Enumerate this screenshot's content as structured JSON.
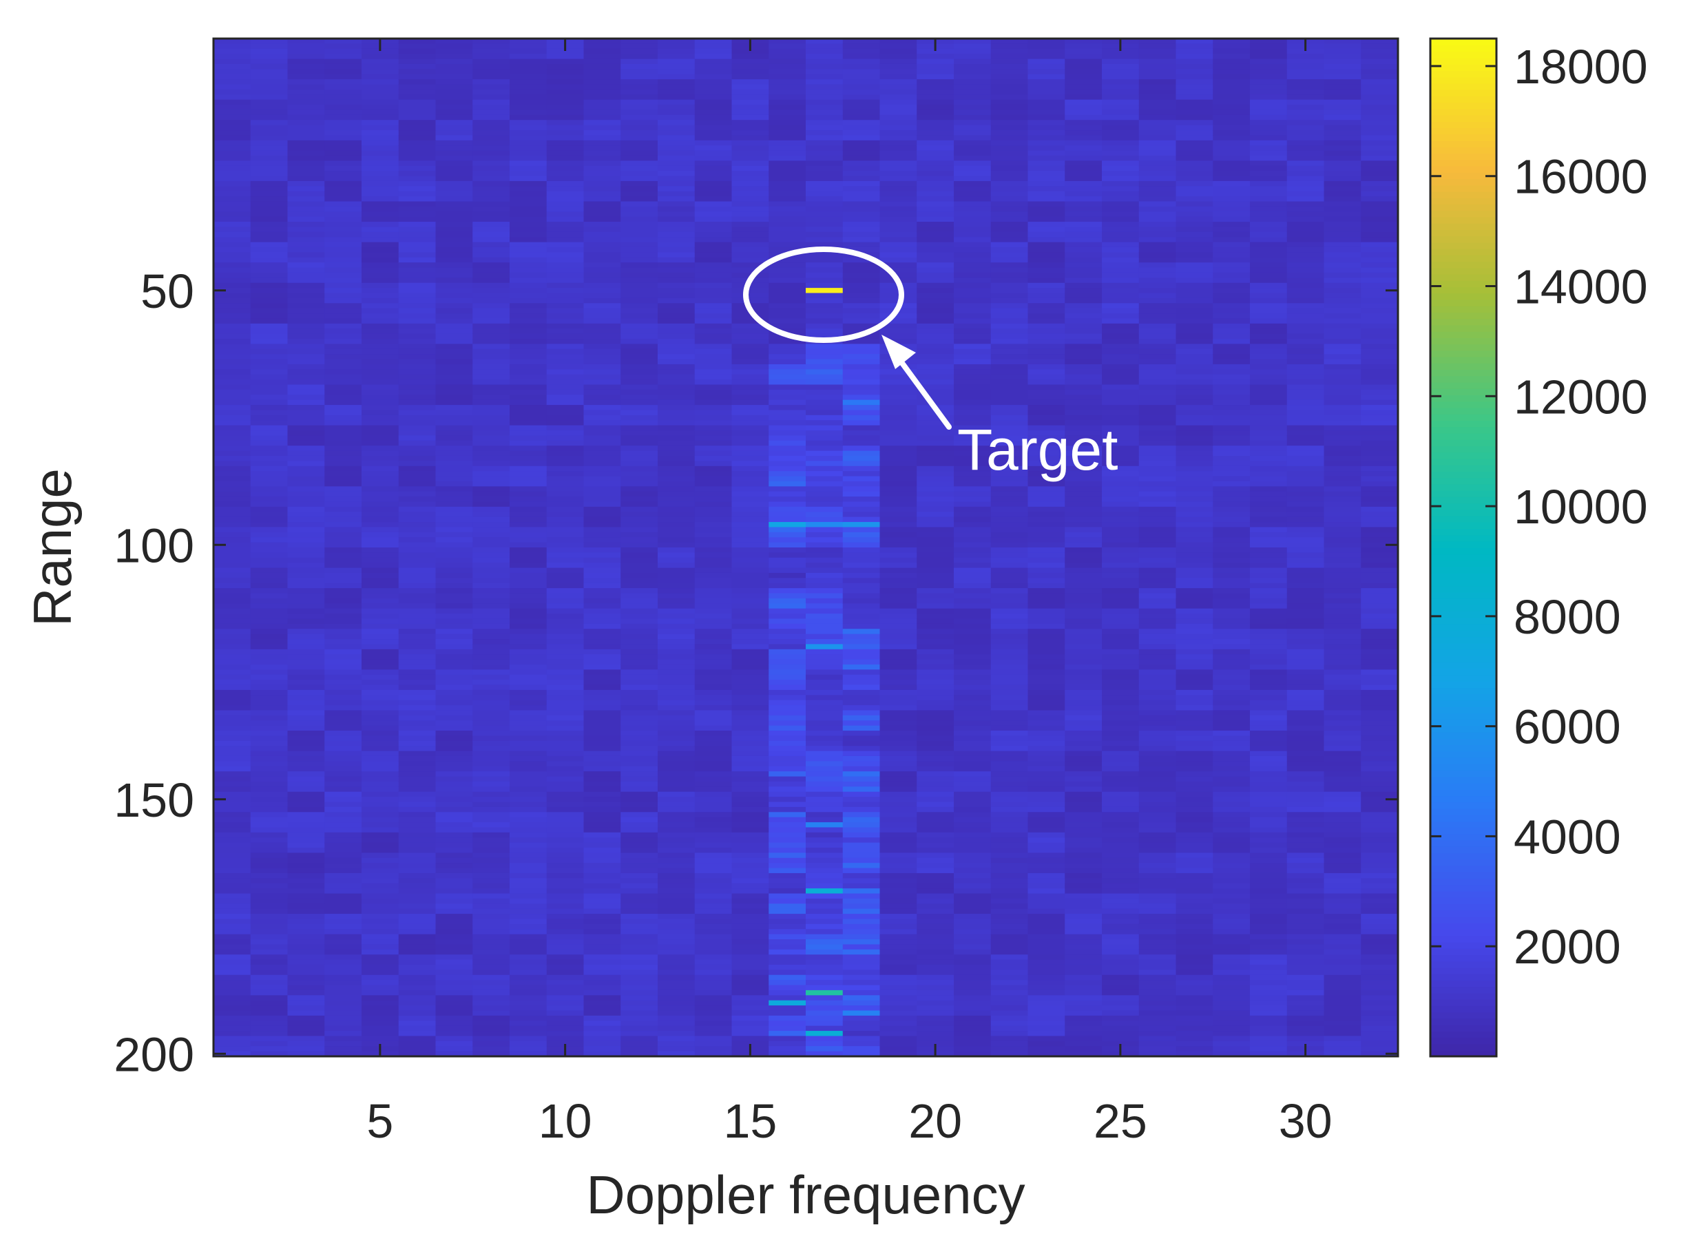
{
  "chart_data": {
    "type": "heatmap",
    "xlabel": "Doppler frequency",
    "ylabel": "Range",
    "xlim": [
      0.5,
      32.5
    ],
    "ylim": [
      0.5,
      200.5
    ],
    "y_reversed": true,
    "x_ticks": [
      5,
      10,
      15,
      20,
      25,
      30
    ],
    "y_ticks": [
      50,
      100,
      150,
      200
    ],
    "colormap": "parula",
    "color_range": [
      0,
      18500
    ],
    "colorbar": {
      "location": "right",
      "ticks": [
        2000,
        4000,
        6000,
        8000,
        10000,
        12000,
        14000,
        16000,
        18000
      ]
    },
    "background_level": 1000,
    "annotations": [
      {
        "text": "Target",
        "type": "ellipse-with-arrow",
        "x": 17,
        "y": 50,
        "color": "#ffffff"
      }
    ],
    "notable_cells": [
      {
        "doppler": 17,
        "range": 50,
        "value": 18000
      },
      {
        "doppler": 17,
        "range": 120,
        "value": 6000
      },
      {
        "doppler": 18,
        "range": 72,
        "value": 4500
      },
      {
        "doppler": 16,
        "range": 96,
        "value": 7000
      },
      {
        "doppler": 17,
        "range": 96,
        "value": 5500
      },
      {
        "doppler": 18,
        "range": 96,
        "value": 6000
      },
      {
        "doppler": 18,
        "range": 145,
        "value": 4000
      },
      {
        "doppler": 16,
        "range": 145,
        "value": 3500
      },
      {
        "doppler": 17,
        "range": 155,
        "value": 5000
      },
      {
        "doppler": 17,
        "range": 168,
        "value": 8000
      },
      {
        "doppler": 18,
        "range": 168,
        "value": 4000
      },
      {
        "doppler": 16,
        "range": 190,
        "value": 7500
      },
      {
        "doppler": 17,
        "range": 188,
        "value": 10500
      },
      {
        "doppler": 17,
        "range": 196,
        "value": 8000
      },
      {
        "doppler": 18,
        "range": 192,
        "value": 5000
      }
    ]
  }
}
